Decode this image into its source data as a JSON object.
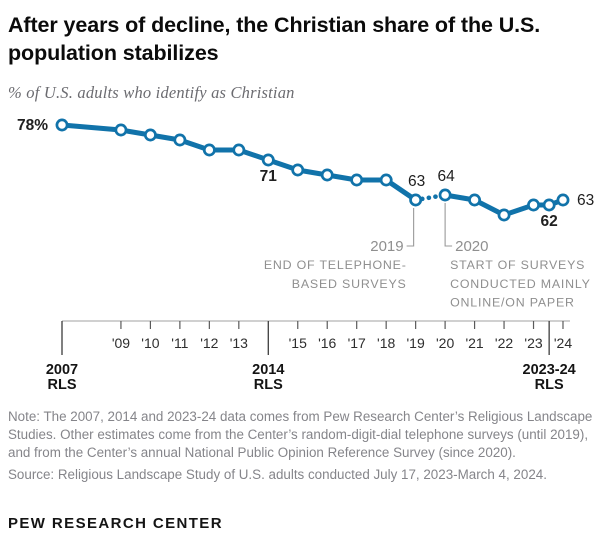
{
  "title": {
    "line1": "After years of decline, the Christian share of the U.S.",
    "line2": "population stabilizes"
  },
  "subtitle": "% of U.S. adults who identify as Christian",
  "chart_data": {
    "type": "line",
    "xlabel": "",
    "ylabel": "% of U.S. adults who identify as Christian",
    "x_range": [
      2007,
      2024
    ],
    "ylim": [
      58,
      80
    ],
    "grid": false,
    "legend": "none",
    "line_color": "#1173aa",
    "marker": "open-circle",
    "dashed_segment_years": [
      2019,
      2020
    ],
    "points": [
      {
        "year": 2007,
        "value": 78,
        "label": "78%",
        "label_bold": true,
        "label_pos": "left",
        "survey": "2007 RLS"
      },
      {
        "year": 2009,
        "value": 77
      },
      {
        "year": 2010,
        "value": 76
      },
      {
        "year": 2011,
        "value": 75
      },
      {
        "year": 2012,
        "value": 73
      },
      {
        "year": 2013,
        "value": 73
      },
      {
        "year": 2014,
        "value": 71,
        "label": "71",
        "label_bold": true,
        "label_pos": "below",
        "survey": "2014 RLS"
      },
      {
        "year": 2015,
        "value": 69
      },
      {
        "year": 2016,
        "value": 68
      },
      {
        "year": 2017,
        "value": 67
      },
      {
        "year": 2018,
        "value": 67
      },
      {
        "year": 2019,
        "value": 63,
        "label": "63",
        "label_bold": false,
        "label_pos": "above"
      },
      {
        "year": 2020,
        "value": 64,
        "label": "64",
        "label_bold": false,
        "label_pos": "above"
      },
      {
        "year": 2021,
        "value": 63
      },
      {
        "year": 2022,
        "value": 60
      },
      {
        "year": 2023,
        "value": 62
      },
      {
        "year": 2023.53,
        "value": 62,
        "label": "62",
        "label_bold": true,
        "label_pos": "below",
        "survey": "2023-24 RLS"
      },
      {
        "year": 2024,
        "value": 63,
        "label": "63",
        "label_bold": false,
        "label_pos": "right"
      }
    ]
  },
  "x_axis": {
    "short_ticks": [
      {
        "year": 2009,
        "label": "'09"
      },
      {
        "year": 2010,
        "label": "'10"
      },
      {
        "year": 2011,
        "label": "'11"
      },
      {
        "year": 2012,
        "label": "'12"
      },
      {
        "year": 2013,
        "label": "'13"
      },
      {
        "year": 2015,
        "label": "'15"
      },
      {
        "year": 2016,
        "label": "'16"
      },
      {
        "year": 2017,
        "label": "'17"
      },
      {
        "year": 2018,
        "label": "'18"
      },
      {
        "year": 2019,
        "label": "'19"
      },
      {
        "year": 2020,
        "label": "'20"
      },
      {
        "year": 2021,
        "label": "'21"
      },
      {
        "year": 2022,
        "label": "'22"
      },
      {
        "year": 2023,
        "label": "'23"
      },
      {
        "year": 2024,
        "label": "'24"
      }
    ],
    "long_ticks": [
      {
        "year": 2007,
        "lines": [
          "2007",
          "RLS"
        ]
      },
      {
        "year": 2014,
        "lines": [
          "2014",
          "RLS"
        ]
      },
      {
        "year": 2023.53,
        "lines": [
          "2023-24",
          "RLS"
        ]
      }
    ]
  },
  "annotations": [
    {
      "year": 2019,
      "side": "left",
      "year_label": "2019",
      "text_lines": [
        "END OF TELEPHONE-",
        "BASED SURVEYS"
      ]
    },
    {
      "year": 2020,
      "side": "right",
      "year_label": "2020",
      "text_lines": [
        "START OF SURVEYS",
        "CONDUCTED MAINLY",
        "ONLINE/ON PAPER"
      ]
    }
  ],
  "note": "Note: The 2007, 2014 and 2023-24 data comes from Pew Research Center’s Religious Landscape Studies. Other estimates come from the Center’s random-digit-dial telephone surveys (until 2019), and from the Center’s annual National Public Opinion Reference Survey (since 2020).",
  "source": "Source: Religious Landscape Study of U.S. adults conducted July 17, 2023-March 4, 2024.",
  "footer": "PEW RESEARCH CENTER",
  "colors": {
    "line": "#1173aa",
    "marker_fill": "#ffffff",
    "annotation_gray": "#8f8f8f",
    "axis_line_gray": "#b3b3b3",
    "tick_gray": "#5a5a5a",
    "value_label_dark": "#202020"
  }
}
